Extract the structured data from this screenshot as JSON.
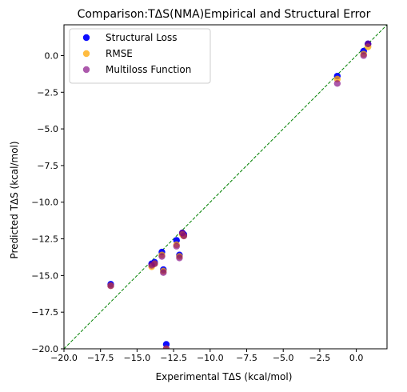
{
  "chart_data": {
    "type": "scatter",
    "title": "Comparison:TΔS(NMA)Empirical and Structural Error",
    "xlabel": "Experimental TΔS (kcal/mol)",
    "ylabel": "Predicted TΔS (kcal/mol)",
    "xlim": [
      -20,
      2.1
    ],
    "ylim": [
      -20,
      2.1
    ],
    "xticks": [
      -20.0,
      -17.5,
      -15.0,
      -12.5,
      -10.0,
      -7.5,
      -5.0,
      -2.5,
      0.0
    ],
    "xtick_labels": [
      "−20.0",
      "−17.5",
      "−15.0",
      "−12.5",
      "−10.0",
      "−7.5",
      "−5.0",
      "−2.5",
      "0.0"
    ],
    "yticks": [
      -20.0,
      -17.5,
      -15.0,
      -12.5,
      -10.0,
      -7.5,
      -5.0,
      -2.5,
      0.0
    ],
    "ytick_labels": [
      "−20.0",
      "−17.5",
      "−15.0",
      "−12.5",
      "−10.0",
      "−7.5",
      "−5.0",
      "−2.5",
      "0.0"
    ],
    "grid": false,
    "legend_position": "top-left",
    "reference_line": {
      "type": "y=x",
      "style": "dashed",
      "color": "#008000"
    },
    "series": [
      {
        "name": "Structural Loss",
        "color": "#0000ff",
        "alpha": 0.95,
        "x": [
          -16.8,
          -14.0,
          -13.8,
          -13.3,
          -13.2,
          -12.3,
          -12.1,
          -11.9,
          -11.8,
          -13.0,
          -1.3,
          0.5,
          0.8
        ],
        "y": [
          -15.6,
          -14.2,
          -14.1,
          -13.4,
          -14.6,
          -12.6,
          -13.6,
          -12.1,
          -12.2,
          -19.7,
          -1.4,
          0.3,
          0.8
        ]
      },
      {
        "name": "RMSE",
        "color": "#ffa500",
        "alpha": 0.75,
        "x": [
          -16.8,
          -14.0,
          -13.8,
          -13.3,
          -13.2,
          -12.3,
          -12.1,
          -11.9,
          -11.8,
          -13.0,
          -1.3,
          0.5,
          0.8
        ],
        "y": [
          -15.7,
          -14.4,
          -14.2,
          -13.6,
          -14.7,
          -12.9,
          -13.7,
          -12.2,
          -12.3,
          -20.0,
          -1.6,
          0.1,
          0.6
        ]
      },
      {
        "name": "Multiloss Function",
        "color": "#800080",
        "alpha": 0.65,
        "x": [
          -16.8,
          -14.0,
          -13.8,
          -13.3,
          -13.2,
          -12.3,
          -12.1,
          -11.9,
          -11.8,
          -13.0,
          -1.3,
          0.5,
          0.8
        ],
        "y": [
          -15.7,
          -14.3,
          -14.2,
          -13.7,
          -14.8,
          -13.0,
          -13.8,
          -12.1,
          -12.3,
          -20.0,
          -1.9,
          0.0,
          0.8
        ]
      }
    ]
  }
}
